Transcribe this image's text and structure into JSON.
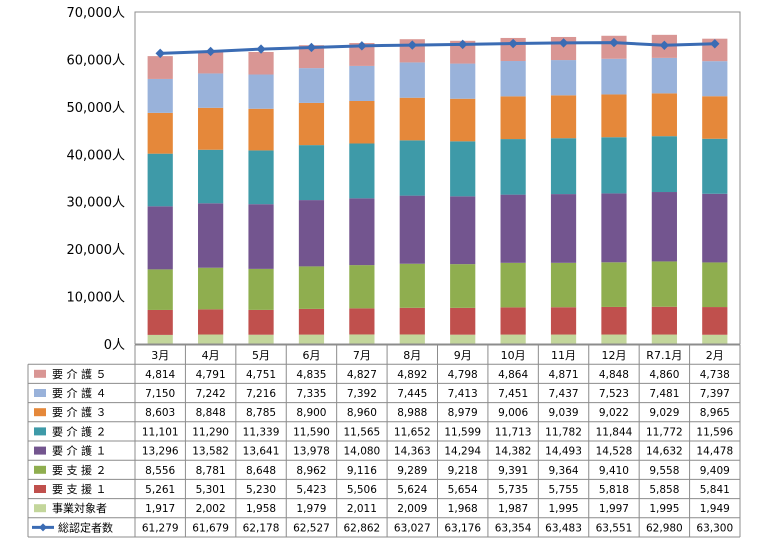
{
  "chart_data": {
    "type": "bar",
    "stacked": true,
    "categories": [
      "3月",
      "4月",
      "5月",
      "6月",
      "7月",
      "8月",
      "9月",
      "10月",
      "11月",
      "12月",
      "R7.1月",
      "2月"
    ],
    "y_ticks": [
      "0人",
      "10,000人",
      "20,000人",
      "30,000人",
      "40,000人",
      "50,000人",
      "60,000人",
      "70,000人"
    ],
    "ylim": [
      0,
      70000
    ],
    "series": [
      {
        "name": "事業対象者",
        "color": "#c3d69b",
        "values": [
          1917,
          2002,
          1958,
          1979,
          2011,
          2009,
          1968,
          1987,
          1995,
          1997,
          1995,
          1949
        ],
        "labels": [
          "1,917",
          "2,002",
          "1,958",
          "1,979",
          "2,011",
          "2,009",
          "1,968",
          "1,987",
          "1,995",
          "1,997",
          "1,995",
          "1,949"
        ]
      },
      {
        "name": "要 支 援 １",
        "color": "#c0504d",
        "values": [
          5261,
          5301,
          5230,
          5423,
          5506,
          5624,
          5654,
          5735,
          5755,
          5818,
          5858,
          5841
        ],
        "labels": [
          "5,261",
          "5,301",
          "5,230",
          "5,423",
          "5,506",
          "5,624",
          "5,654",
          "5,735",
          "5,755",
          "5,818",
          "5,858",
          "5,841"
        ]
      },
      {
        "name": "要 支 援 ２",
        "color": "#8fae4f",
        "values": [
          8556,
          8781,
          8648,
          8962,
          9116,
          9289,
          9218,
          9391,
          9364,
          9410,
          9558,
          9409
        ],
        "labels": [
          "8,556",
          "8,781",
          "8,648",
          "8,962",
          "9,116",
          "9,289",
          "9,218",
          "9,391",
          "9,364",
          "9,410",
          "9,558",
          "9,409"
        ]
      },
      {
        "name": "要 介 護 １",
        "color": "#73558f",
        "values": [
          13296,
          13582,
          13641,
          13978,
          14080,
          14363,
          14294,
          14382,
          14493,
          14528,
          14632,
          14478
        ],
        "labels": [
          "13,296",
          "13,582",
          "13,641",
          "13,978",
          "14,080",
          "14,363",
          "14,294",
          "14,382",
          "14,493",
          "14,528",
          "14,632",
          "14,478"
        ]
      },
      {
        "name": "要 介 護 ２",
        "color": "#3e9aa8",
        "values": [
          11101,
          11290,
          11339,
          11590,
          11565,
          11652,
          11599,
          11713,
          11782,
          11844,
          11772,
          11596
        ],
        "labels": [
          "11,101",
          "11,290",
          "11,339",
          "11,590",
          "11,565",
          "11,652",
          "11,599",
          "11,713",
          "11,782",
          "11,844",
          "11,772",
          "11,596"
        ]
      },
      {
        "name": "要 介 護 ３",
        "color": "#e5883a",
        "values": [
          8603,
          8848,
          8785,
          8900,
          8960,
          8988,
          8979,
          9006,
          9039,
          9022,
          9029,
          8965
        ],
        "labels": [
          "8,603",
          "8,848",
          "8,785",
          "8,900",
          "8,960",
          "8,988",
          "8,979",
          "9,006",
          "9,039",
          "9,022",
          "9,029",
          "8,965"
        ]
      },
      {
        "name": "要 介 護 ４",
        "color": "#99b2da",
        "values": [
          7150,
          7242,
          7216,
          7335,
          7392,
          7445,
          7413,
          7451,
          7437,
          7523,
          7481,
          7397
        ],
        "labels": [
          "7,150",
          "7,242",
          "7,216",
          "7,335",
          "7,392",
          "7,445",
          "7,413",
          "7,451",
          "7,437",
          "7,523",
          "7,481",
          "7,397"
        ]
      },
      {
        "name": "要 介 護 ５",
        "color": "#d99694",
        "values": [
          4814,
          4791,
          4751,
          4835,
          4827,
          4892,
          4798,
          4864,
          4871,
          4848,
          4860,
          4738
        ],
        "labels": [
          "4,814",
          "4,791",
          "4,751",
          "4,835",
          "4,827",
          "4,892",
          "4,798",
          "4,864",
          "4,871",
          "4,848",
          "4,860",
          "4,738"
        ]
      }
    ],
    "line_series": {
      "name": "総認定者数",
      "color": "#3b6cb4",
      "values": [
        61279,
        61679,
        62178,
        62527,
        62862,
        63027,
        63176,
        63354,
        63483,
        63551,
        62980,
        63300
      ],
      "labels": [
        "61,279",
        "61,679",
        "62,178",
        "62,527",
        "62,862",
        "63,027",
        "63,176",
        "63,354",
        "63,483",
        "63,551",
        "62,980",
        "63,300"
      ]
    },
    "table_row_order": [
      "要 介 護 ５",
      "要 介 護 ４",
      "要 介 護 ３",
      "要 介 護 ２",
      "要 介 護 １",
      "要 支 援 ２",
      "要 支 援 １",
      "事業対象者"
    ],
    "grid": false,
    "legend": "data-table"
  }
}
